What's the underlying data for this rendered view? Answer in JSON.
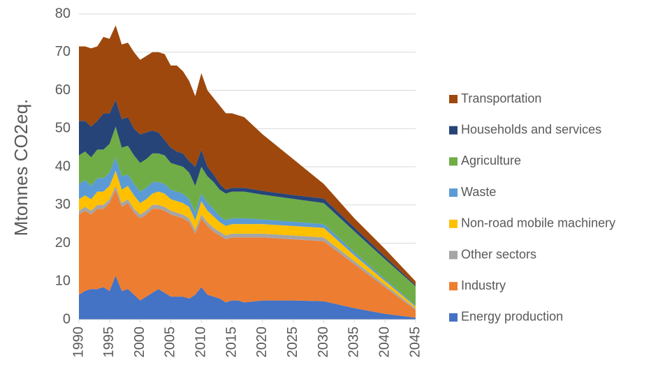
{
  "chart_data": {
    "type": "stacked_area",
    "y_label": "Mtonnes CO2eq.",
    "x": [
      1990,
      1991,
      1992,
      1993,
      1994,
      1995,
      1996,
      1997,
      1998,
      1999,
      2000,
      2001,
      2002,
      2003,
      2004,
      2005,
      2006,
      2007,
      2008,
      2009,
      2010,
      2011,
      2012,
      2013,
      2014,
      2015,
      2016,
      2017,
      2020,
      2025,
      2030,
      2035,
      2040,
      2045
    ],
    "xlim": [
      1990,
      2045
    ],
    "xticks": [
      1990,
      1995,
      2000,
      2005,
      2010,
      2015,
      2020,
      2025,
      2030,
      2035,
      2040,
      2045
    ],
    "ylim": [
      0,
      80
    ],
    "yticks": [
      0,
      10,
      20,
      30,
      40,
      50,
      60,
      70,
      80
    ],
    "grid": true,
    "legend": "right",
    "series": [
      {
        "name": "Energy production",
        "color": "#4472c4",
        "values": [
          6.5,
          7.5,
          8,
          8,
          8.5,
          7.5,
          11.5,
          7.5,
          8,
          6.5,
          5,
          6,
          7,
          8,
          7,
          6,
          6,
          6,
          5.5,
          6.5,
          8.5,
          6.5,
          6,
          5.5,
          4.5,
          5,
          5,
          4.5,
          5,
          5,
          4.8,
          3,
          1.5,
          0.5
        ]
      },
      {
        "name": "Industry",
        "color": "#ed7d31",
        "values": [
          21,
          21,
          19.5,
          21,
          20.5,
          23,
          22.5,
          22,
          22.5,
          21.5,
          21.5,
          21.5,
          22,
          21,
          21.5,
          21.5,
          21,
          20.5,
          20,
          16,
          18,
          18,
          17,
          16.5,
          16.5,
          16.5,
          16.5,
          17,
          16.5,
          16,
          15.7,
          11.5,
          7,
          2
        ]
      },
      {
        "name": "Other sectors",
        "color": "#a5a5a5",
        "values": [
          1,
          1,
          1,
          1,
          1,
          1,
          1,
          1,
          1,
          1,
          1,
          1,
          1,
          1,
          1,
          1,
          1,
          1,
          1,
          1,
          1,
          1,
          1,
          1,
          1,
          1,
          1,
          1,
          1,
          1,
          1,
          0.8,
          0.6,
          0.4
        ]
      },
      {
        "name": "Non-road mobile machinery",
        "color": "#ffc000",
        "values": [
          3,
          3,
          3,
          3.5,
          3.5,
          3.5,
          4,
          3.5,
          3.5,
          3.5,
          3,
          3,
          3,
          3.5,
          3.5,
          3,
          3,
          3,
          3,
          2.5,
          3.5,
          3,
          3,
          2.5,
          2.5,
          2.5,
          2.5,
          2.5,
          2.5,
          2.5,
          2.5,
          1.5,
          1,
          0.5
        ]
      },
      {
        "name": "Waste",
        "color": "#5b9bd5",
        "values": [
          4,
          4,
          3.5,
          3.5,
          3.5,
          3.5,
          3.5,
          3.5,
          3,
          3,
          3,
          3,
          3,
          2.5,
          2.5,
          2.5,
          2.5,
          2.5,
          2,
          2,
          2,
          2,
          2,
          1.5,
          1.5,
          1.5,
          1.5,
          1.5,
          1.2,
          1.1,
          1,
          0.8,
          0.5,
          0.3
        ]
      },
      {
        "name": "Agriculture",
        "color": "#70ad47",
        "values": [
          7.5,
          7.5,
          7.5,
          7.5,
          7.5,
          7.5,
          8,
          7.5,
          7.5,
          7.5,
          7.5,
          7.5,
          7.5,
          7.5,
          7.5,
          7,
          7,
          7,
          7,
          7,
          7,
          7,
          7,
          7,
          7,
          7,
          7,
          7,
          6.5,
          6,
          5.5,
          5.5,
          5.2,
          5
        ]
      },
      {
        "name": "Households and services",
        "color": "#264478",
        "values": [
          9,
          8,
          8,
          7.5,
          9.5,
          8,
          7,
          7.5,
          7.5,
          7,
          7.5,
          7,
          6,
          5.5,
          4,
          4,
          3.5,
          3.5,
          3,
          5,
          4.5,
          2.5,
          2,
          1.5,
          1,
          1,
          1,
          1,
          1,
          1,
          1.2,
          1,
          0.7,
          0.3
        ]
      },
      {
        "name": "Transportation",
        "color": "#9e480e",
        "values": [
          19.5,
          19.5,
          20.5,
          19.5,
          20,
          19.5,
          19.5,
          19.5,
          19.5,
          20,
          19.5,
          20,
          20.5,
          21,
          22.5,
          21.5,
          22.5,
          21.5,
          21,
          18.5,
          20,
          20,
          20,
          20.5,
          20,
          19.5,
          19,
          18.5,
          14.8,
          9.4,
          3.8,
          2.4,
          2,
          1
        ]
      }
    ]
  }
}
